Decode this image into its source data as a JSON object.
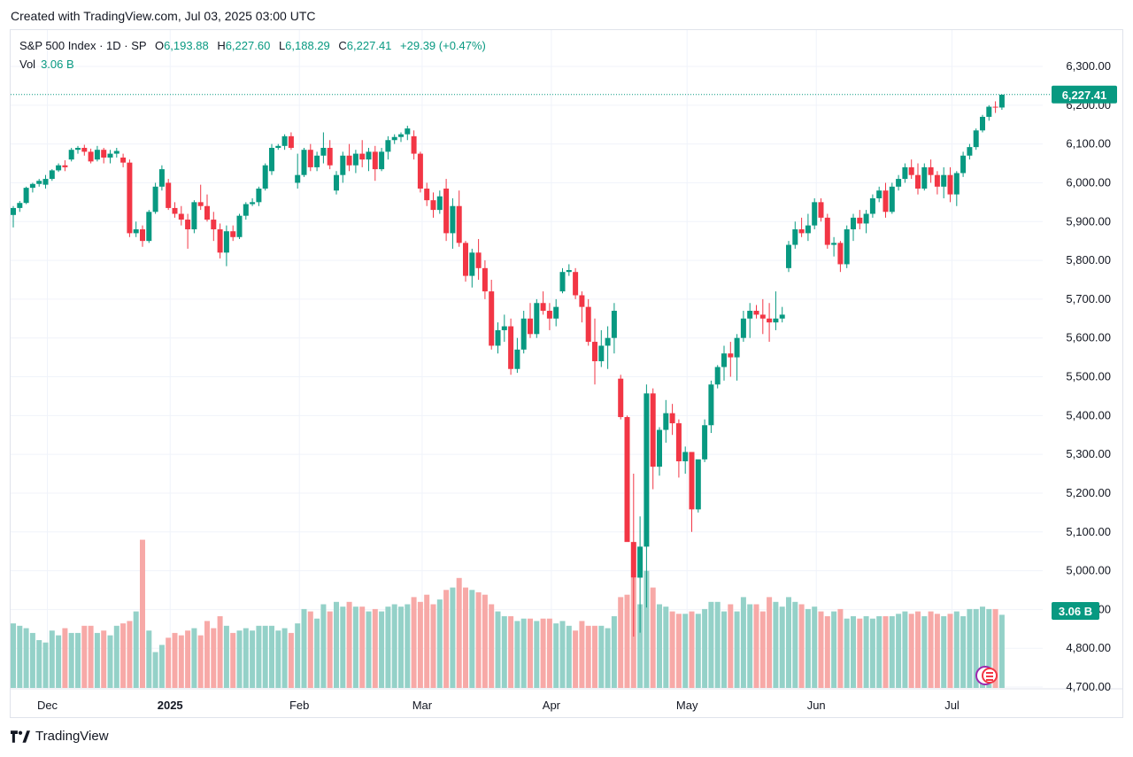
{
  "caption": "Created with TradingView.com, Jul 03, 2025 03:00 UTC",
  "legend": {
    "symbol": "S&P 500 Index · 1D · SP",
    "o_label": "O",
    "open": "6,193.88",
    "h_label": "H",
    "high": "6,227.60",
    "l_label": "L",
    "low": "6,188.29",
    "c_label": "C",
    "close": "6,227.41",
    "change": "+29.39 (+0.47%)",
    "vol_label": "Vol",
    "vol_value": "3.06 B"
  },
  "price_tag": "6,227.41",
  "vol_tag": "3.06 B",
  "footer_brand": "TradingView",
  "colors": {
    "up": "#089981",
    "down": "#f23645",
    "vol_up": "#94d1c8",
    "vol_down": "#f7a9a7",
    "grid": "#f0f3fa"
  },
  "chart_data": {
    "type": "candlestick",
    "yaxis_ticks": [
      "4,700.00",
      "4,800.00",
      "4,900.00",
      "5,000.00",
      "5,100.00",
      "5,200.00",
      "5,300.00",
      "5,400.00",
      "5,500.00",
      "5,600.00",
      "5,700.00",
      "5,800.00",
      "5,900.00",
      "6,000.00",
      "6,100.00",
      "6,200.00",
      "6,300.00"
    ],
    "ylim": [
      4700,
      6300
    ],
    "xaxis_ticks": [
      {
        "label": "Dec",
        "index": 5
      },
      {
        "label": "2025",
        "index": 24
      },
      {
        "label": "Feb",
        "index": 44
      },
      {
        "label": "Mar",
        "index": 63
      },
      {
        "label": "Apr",
        "index": 83
      },
      {
        "label": "May",
        "index": 104
      },
      {
        "label": "Jun",
        "index": 124
      },
      {
        "label": "Jul",
        "index": 145
      }
    ],
    "last_close": 6227.41,
    "ohlcv": [
      [
        5917,
        5940,
        5885,
        5935,
        2.7
      ],
      [
        5935,
        5953,
        5925,
        5948,
        2.6
      ],
      [
        5948,
        5990,
        5945,
        5987,
        2.5
      ],
      [
        5987,
        6000,
        5975,
        5997,
        2.3
      ],
      [
        5997,
        6010,
        5990,
        6005,
        2.0
      ],
      [
        5995,
        6020,
        5985,
        6010,
        1.9
      ],
      [
        6010,
        6035,
        6005,
        6032,
        2.4
      ],
      [
        6032,
        6050,
        6028,
        6045,
        2.2
      ],
      [
        6045,
        6058,
        6030,
        6040,
        2.5
      ],
      [
        6060,
        6090,
        6055,
        6085,
        2.3
      ],
      [
        6085,
        6095,
        6075,
        6090,
        2.3
      ],
      [
        6090,
        6098,
        6070,
        6080,
        2.6
      ],
      [
        6080,
        6088,
        6050,
        6055,
        2.6
      ],
      [
        6060,
        6095,
        6055,
        6085,
        2.3
      ],
      [
        6085,
        6090,
        6050,
        6065,
        2.4
      ],
      [
        6065,
        6085,
        6050,
        6075,
        2.2
      ],
      [
        6075,
        6090,
        6065,
        6082,
        2.6
      ],
      [
        6065,
        6075,
        6040,
        6052,
        2.7
      ],
      [
        6052,
        6060,
        5860,
        5870,
        2.8
      ],
      [
        5870,
        5900,
        5860,
        5880,
        3.2
      ],
      [
        5880,
        5890,
        5835,
        5850,
        6.2
      ],
      [
        5850,
        5930,
        5845,
        5925,
        2.4
      ],
      [
        5925,
        6000,
        5920,
        5990,
        1.5
      ],
      [
        5990,
        6045,
        5980,
        6035,
        1.8
      ],
      [
        6000,
        6010,
        5930,
        5935,
        2.1
      ],
      [
        5935,
        5950,
        5910,
        5920,
        2.3
      ],
      [
        5920,
        5940,
        5890,
        5905,
        2.2
      ],
      [
        5905,
        5920,
        5830,
        5880,
        2.4
      ],
      [
        5880,
        5955,
        5870,
        5950,
        2.5
      ],
      [
        5950,
        5995,
        5930,
        5940,
        2.2
      ],
      [
        5940,
        5970,
        5900,
        5905,
        2.8
      ],
      [
        5905,
        5925,
        5850,
        5880,
        2.5
      ],
      [
        5880,
        5895,
        5805,
        5820,
        3.0
      ],
      [
        5820,
        5890,
        5785,
        5875,
        2.6
      ],
      [
        5875,
        5890,
        5850,
        5860,
        2.3
      ],
      [
        5860,
        5920,
        5855,
        5915,
        2.4
      ],
      [
        5915,
        5950,
        5905,
        5945,
        2.5
      ],
      [
        5945,
        5960,
        5940,
        5950,
        2.4
      ],
      [
        5950,
        5990,
        5940,
        5985,
        2.6
      ],
      [
        5985,
        6050,
        5980,
        6045,
        2.6
      ],
      [
        6030,
        6100,
        6020,
        6090,
        2.6
      ],
      [
        6090,
        6100,
        6085,
        6095,
        2.4
      ],
      [
        6095,
        6125,
        6085,
        6120,
        2.5
      ],
      [
        6120,
        6130,
        6085,
        6090,
        2.3
      ],
      [
        6000,
        6075,
        5985,
        6020,
        2.7
      ],
      [
        6020,
        6090,
        6015,
        6085,
        3.3
      ],
      [
        6085,
        6100,
        6030,
        6040,
        3.2
      ],
      [
        6040,
        6080,
        6030,
        6070,
        2.9
      ],
      [
        6070,
        6130,
        6050,
        6090,
        3.5
      ],
      [
        6090,
        6110,
        6035,
        6045,
        3.2
      ],
      [
        5980,
        6030,
        5970,
        6020,
        3.6
      ],
      [
        6020,
        6080,
        6000,
        6070,
        3.4
      ],
      [
        6070,
        6100,
        6030,
        6045,
        3.6
      ],
      [
        6045,
        6085,
        6025,
        6075,
        3.4
      ],
      [
        6075,
        6110,
        6040,
        6060,
        3.4
      ],
      [
        6060,
        6090,
        6030,
        6080,
        3.2
      ],
      [
        6080,
        6095,
        6005,
        6035,
        3.3
      ],
      [
        6035,
        6090,
        6030,
        6080,
        3.2
      ],
      [
        6080,
        6120,
        6060,
        6110,
        3.4
      ],
      [
        6110,
        6125,
        6100,
        6118,
        3.5
      ],
      [
        6118,
        6130,
        6105,
        6125,
        3.4
      ],
      [
        6125,
        6147,
        6110,
        6140,
        3.5
      ],
      [
        6120,
        6135,
        6060,
        6075,
        3.8
      ],
      [
        6075,
        6080,
        5975,
        5985,
        3.6
      ],
      [
        5985,
        6000,
        5940,
        5955,
        3.9
      ],
      [
        5955,
        5975,
        5910,
        5930,
        3.5
      ],
      [
        5930,
        5980,
        5920,
        5965,
        3.7
      ],
      [
        5985,
        6010,
        5850,
        5870,
        4.1
      ],
      [
        5870,
        5960,
        5830,
        5940,
        4.2
      ],
      [
        5940,
        5980,
        5835,
        5845,
        4.6
      ],
      [
        5845,
        5850,
        5745,
        5760,
        4.2
      ],
      [
        5760,
        5830,
        5730,
        5820,
        4.1
      ],
      [
        5820,
        5855,
        5750,
        5780,
        4.0
      ],
      [
        5780,
        5800,
        5700,
        5720,
        3.9
      ],
      [
        5720,
        5750,
        5570,
        5580,
        3.5
      ],
      [
        5580,
        5640,
        5560,
        5620,
        3.2
      ],
      [
        5620,
        5660,
        5590,
        5630,
        3.0
      ],
      [
        5630,
        5650,
        5505,
        5520,
        3.0
      ],
      [
        5520,
        5600,
        5510,
        5570,
        2.8
      ],
      [
        5570,
        5670,
        5560,
        5650,
        2.9
      ],
      [
        5650,
        5690,
        5600,
        5610,
        2.9
      ],
      [
        5610,
        5700,
        5600,
        5690,
        2.8
      ],
      [
        5690,
        5720,
        5660,
        5670,
        2.9
      ],
      [
        5670,
        5690,
        5620,
        5650,
        2.9
      ],
      [
        5650,
        5700,
        5630,
        5680,
        2.7
      ],
      [
        5720,
        5780,
        5715,
        5770,
        2.8
      ],
      [
        5770,
        5790,
        5760,
        5775,
        2.6
      ],
      [
        5770,
        5780,
        5700,
        5710,
        2.4
      ],
      [
        5710,
        5720,
        5640,
        5680,
        2.8
      ],
      [
        5680,
        5700,
        5580,
        5590,
        2.6
      ],
      [
        5590,
        5650,
        5480,
        5540,
        2.6
      ],
      [
        5540,
        5620,
        5525,
        5580,
        2.6
      ],
      [
        5580,
        5630,
        5520,
        5600,
        2.5
      ],
      [
        5600,
        5690,
        5560,
        5670,
        3.0
      ],
      [
        5495,
        5505,
        5390,
        5396,
        3.8
      ],
      [
        5396,
        5400,
        5085,
        5074,
        3.9
      ],
      [
        5074,
        5250,
        4830,
        4982,
        4.6
      ],
      [
        4982,
        5140,
        4840,
        5062,
        3.5
      ],
      [
        5062,
        5480,
        4905,
        5457,
        4.9
      ],
      [
        5457,
        5470,
        5210,
        5268,
        4.2
      ],
      [
        5268,
        5370,
        5245,
        5363,
        3.5
      ],
      [
        5363,
        5440,
        5330,
        5406,
        3.4
      ],
      [
        5406,
        5430,
        5350,
        5380,
        3.2
      ],
      [
        5380,
        5390,
        5240,
        5282,
        3.1
      ],
      [
        5282,
        5320,
        5250,
        5306,
        3.1
      ],
      [
        5306,
        5300,
        5100,
        5158,
        3.2
      ],
      [
        5158,
        5280,
        5150,
        5287,
        3.1
      ],
      [
        5287,
        5390,
        5280,
        5375,
        3.3
      ],
      [
        5375,
        5490,
        5355,
        5480,
        3.6
      ],
      [
        5480,
        5530,
        5470,
        5525,
        3.6
      ],
      [
        5525,
        5580,
        5490,
        5560,
        3.2
      ],
      [
        5560,
        5590,
        5500,
        5550,
        3.5
      ],
      [
        5550,
        5610,
        5490,
        5600,
        3.2
      ],
      [
        5600,
        5670,
        5590,
        5650,
        3.8
      ],
      [
        5650,
        5690,
        5600,
        5670,
        3.5
      ],
      [
        5670,
        5685,
        5650,
        5660,
        3.5
      ],
      [
        5660,
        5700,
        5610,
        5650,
        3.2
      ],
      [
        5650,
        5690,
        5590,
        5640,
        3.8
      ],
      [
        5640,
        5720,
        5620,
        5650,
        3.6
      ],
      [
        5650,
        5680,
        5640,
        5660,
        3.4
      ],
      [
        5780,
        5850,
        5770,
        5840,
        3.8
      ],
      [
        5840,
        5900,
        5830,
        5880,
        3.6
      ],
      [
        5880,
        5910,
        5860,
        5870,
        3.5
      ],
      [
        5870,
        5920,
        5850,
        5890,
        3.3
      ],
      [
        5890,
        5960,
        5880,
        5950,
        3.4
      ],
      [
        5950,
        5960,
        5900,
        5910,
        3.2
      ],
      [
        5910,
        5920,
        5830,
        5840,
        3.0
      ],
      [
        5840,
        5860,
        5810,
        5845,
        3.2
      ],
      [
        5845,
        5850,
        5770,
        5790,
        3.3
      ],
      [
        5790,
        5890,
        5780,
        5880,
        2.9
      ],
      [
        5880,
        5920,
        5850,
        5910,
        3.0
      ],
      [
        5910,
        5930,
        5880,
        5895,
        2.9
      ],
      [
        5895,
        5930,
        5870,
        5920,
        3.0
      ],
      [
        5920,
        5970,
        5910,
        5960,
        2.9
      ],
      [
        5960,
        5990,
        5950,
        5980,
        3.0
      ],
      [
        5980,
        6000,
        5910,
        5925,
        3.0
      ],
      [
        5925,
        6000,
        5920,
        5990,
        3.0
      ],
      [
        5990,
        6020,
        5980,
        6010,
        3.1
      ],
      [
        6010,
        6050,
        6000,
        6040,
        3.2
      ],
      [
        6040,
        6060,
        6010,
        6020,
        3.1
      ],
      [
        6020,
        6050,
        5970,
        5985,
        3.2
      ],
      [
        5985,
        6050,
        5980,
        6040,
        3.0
      ],
      [
        6040,
        6060,
        6000,
        6020,
        3.2
      ],
      [
        6020,
        6030,
        5970,
        5990,
        3.1
      ],
      [
        5990,
        6040,
        5960,
        6020,
        3.0
      ],
      [
        6020,
        6040,
        5950,
        5970,
        3.1
      ],
      [
        5970,
        6030,
        5940,
        6025,
        3.2
      ],
      [
        6025,
        6080,
        6015,
        6070,
        3.0
      ],
      [
        6070,
        6100,
        6060,
        6092,
        3.3
      ],
      [
        6092,
        6140,
        6085,
        6135,
        3.3
      ],
      [
        6135,
        6175,
        6130,
        6170,
        3.4
      ],
      [
        6170,
        6200,
        6160,
        6196,
        3.3
      ],
      [
        6196,
        6210,
        6180,
        6194,
        3.3
      ],
      [
        6194,
        6228,
        6188,
        6227,
        3.06
      ]
    ]
  }
}
